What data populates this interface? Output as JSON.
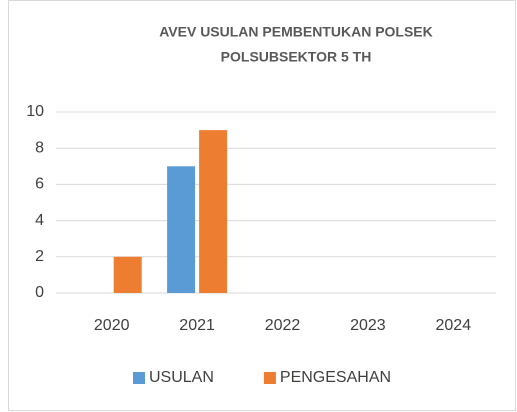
{
  "chart_data": {
    "type": "bar",
    "title": [
      "AVEV USULAN PEMBENTUKAN POLSEK",
      "POLSUBSEKTOR 5 TH"
    ],
    "categories": [
      "2020",
      "2021",
      "2022",
      "2023",
      "2024"
    ],
    "series": [
      {
        "name": "USULAN",
        "color": "#5b9bd5",
        "values": [
          0,
          7,
          0,
          0,
          0
        ]
      },
      {
        "name": "PENGESAHAN",
        "color": "#ed7d31",
        "values": [
          2,
          9,
          0,
          0,
          0
        ]
      }
    ],
    "ylim": [
      0,
      10
    ],
    "yticks": [
      0,
      2,
      4,
      6,
      8,
      10
    ],
    "grid": true,
    "legend": "bottom"
  }
}
